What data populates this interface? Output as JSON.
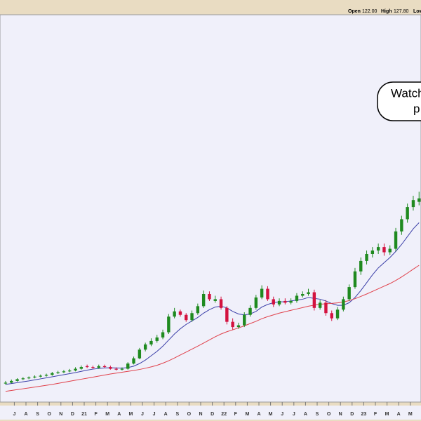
{
  "chart_data": {
    "type": "candlestick",
    "header": [
      "Open",
      "122.00",
      "High",
      "127.80",
      "Low"
    ],
    "annotation": [
      "Watch",
      "p"
    ],
    "xlim": [
      -0.5,
      71.5
    ],
    "ylim": [
      0,
      230
    ],
    "xticks": [
      {
        "value": 1.5,
        "label": "J"
      },
      {
        "value": 3.5,
        "label": "A"
      },
      {
        "value": 5.5,
        "label": "S"
      },
      {
        "value": 7.5,
        "label": "O"
      },
      {
        "value": 9.5,
        "label": "N"
      },
      {
        "value": 11.5,
        "label": "D"
      },
      {
        "value": 13.5,
        "label": "21"
      },
      {
        "value": 15.5,
        "label": "F"
      },
      {
        "value": 17.5,
        "label": "M"
      },
      {
        "value": 19.5,
        "label": "A"
      },
      {
        "value": 21.5,
        "label": "M"
      },
      {
        "value": 23.5,
        "label": "J"
      },
      {
        "value": 25.5,
        "label": "J"
      },
      {
        "value": 27.5,
        "label": "A"
      },
      {
        "value": 29.5,
        "label": "S"
      },
      {
        "value": 31.5,
        "label": "O"
      },
      {
        "value": 33.5,
        "label": "N"
      },
      {
        "value": 35.5,
        "label": "D"
      },
      {
        "value": 37.5,
        "label": "22"
      },
      {
        "value": 39.5,
        "label": "F"
      },
      {
        "value": 41.5,
        "label": "M"
      },
      {
        "value": 43.5,
        "label": "A"
      },
      {
        "value": 45.5,
        "label": "M"
      },
      {
        "value": 47.5,
        "label": "J"
      },
      {
        "value": 49.5,
        "label": "J"
      },
      {
        "value": 51.5,
        "label": "A"
      },
      {
        "value": 53.5,
        "label": "S"
      },
      {
        "value": 55.5,
        "label": "O"
      },
      {
        "value": 57.5,
        "label": "N"
      },
      {
        "value": 59.5,
        "label": "D"
      },
      {
        "value": 61.5,
        "label": "23"
      },
      {
        "value": 63.5,
        "label": "F"
      },
      {
        "value": 65.5,
        "label": "M"
      },
      {
        "value": 67.5,
        "label": "A"
      },
      {
        "value": 69.5,
        "label": "M"
      }
    ],
    "up_color": "#1f8a1f",
    "down_color": "#d3123f",
    "open": [
      17.5,
      18,
      19,
      20,
      20.5,
      21,
      21.5,
      22,
      22.5,
      23.5,
      24,
      24.5,
      25,
      26,
      27.5,
      27,
      26.5,
      27.5,
      27,
      26,
      25.5,
      26,
      29,
      32,
      37,
      40,
      42,
      44,
      47,
      56,
      59,
      57,
      54,
      58,
      62,
      69,
      65,
      66,
      61,
      53,
      50,
      51,
      57,
      61,
      67,
      72,
      66,
      63,
      65,
      64,
      65,
      68,
      69,
      70,
      61,
      64,
      58,
      55,
      60,
      66,
      73,
      82,
      88,
      92,
      94,
      96,
      93,
      95,
      105,
      112,
      119,
      122
    ],
    "high": [
      19,
      19.8,
      20.6,
      21.2,
      21.6,
      22.2,
      22.7,
      23.2,
      24.2,
      24.8,
      25.3,
      25.9,
      26.9,
      27.9,
      28.4,
      27.8,
      28.4,
      28.4,
      27.8,
      26.8,
      26.8,
      29.8,
      33,
      38,
      41,
      43.5,
      45.5,
      48.5,
      57.5,
      61,
      60,
      58,
      59.5,
      63.5,
      71,
      70.5,
      68,
      67.5,
      62,
      55,
      52.5,
      58.5,
      62.5,
      68.5,
      74,
      73.5,
      67.5,
      66.5,
      66.5,
      66.5,
      69.5,
      70.5,
      72,
      71.5,
      65.5,
      65.5,
      59.5,
      61.5,
      67.5,
      74.5,
      84,
      90,
      94,
      96,
      98,
      98,
      97,
      107,
      114,
      121,
      125.5,
      127.8
    ],
    "low": [
      17,
      17.6,
      18.6,
      19.5,
      20,
      20.5,
      21,
      21.5,
      22,
      23,
      23.5,
      24,
      24.5,
      25.5,
      26.4,
      26,
      26,
      26.5,
      25.5,
      25,
      25,
      25.5,
      28.5,
      31.5,
      36,
      39,
      41,
      43,
      46,
      55,
      56,
      53,
      53,
      57,
      61,
      65,
      64,
      60,
      51.5,
      48.5,
      49,
      50,
      56,
      60,
      66,
      65,
      61.5,
      62,
      63,
      63,
      64,
      67,
      68,
      59.5,
      60,
      56.5,
      53.5,
      54,
      59,
      65,
      72,
      80,
      86,
      90,
      92,
      91,
      91.5,
      93.5,
      103,
      110,
      117,
      120
    ],
    "close": [
      18,
      19,
      20,
      20.5,
      21,
      21.5,
      22,
      22.5,
      23.5,
      24,
      24.5,
      25,
      26,
      27,
      27,
      26.5,
      27.5,
      27,
      26,
      25.5,
      26,
      29,
      32,
      37,
      40,
      42,
      44,
      47,
      56,
      59,
      57,
      54,
      58,
      62,
      69,
      66,
      66,
      61,
      53,
      50,
      51,
      57,
      61,
      67,
      72,
      66,
      63,
      65,
      64,
      65,
      68,
      69,
      70,
      61,
      64,
      58,
      55,
      60,
      66,
      73,
      82,
      88,
      92,
      94,
      96,
      93,
      95,
      105,
      112,
      119,
      123,
      124
    ],
    "series": [
      {
        "color": "#3b3fa8",
        "values": [
          17,
          17.5,
          18,
          18.5,
          19,
          19.6,
          20.2,
          20.8,
          21.4,
          22,
          22.6,
          23.2,
          23.8,
          24.5,
          25.2,
          25.8,
          26.2,
          26.5,
          26.6,
          26.5,
          26.4,
          26.7,
          27.5,
          29,
          31,
          33.5,
          36,
          39,
          42.5,
          46,
          49,
          51.5,
          53.5,
          55.5,
          58,
          60,
          61.5,
          62,
          61,
          59,
          57.5,
          57,
          57.5,
          59,
          61.5,
          63,
          64,
          64.5,
          64.5,
          65,
          65.5,
          66,
          67,
          66.5,
          66,
          65,
          63.5,
          62.5,
          62.5,
          64,
          67,
          71,
          75.5,
          80,
          84,
          87,
          90,
          93.5,
          97.5,
          102,
          106.5,
          110
        ]
      },
      {
        "color": "#e0404a",
        "values": [
          13,
          13.5,
          14,
          14.5,
          15,
          15.5,
          16,
          16.5,
          17,
          17.6,
          18.2,
          18.8,
          19.4,
          20,
          20.6,
          21.2,
          21.8,
          22.4,
          23,
          23.5,
          24,
          24.5,
          25,
          25.6,
          26.3,
          27.1,
          28,
          29.2,
          30.6,
          32.2,
          33.9,
          35.6,
          37.3,
          39,
          40.8,
          42.6,
          44.4,
          46,
          47.3,
          48.4,
          49.5,
          50.7,
          52,
          53.3,
          54.8,
          56,
          57,
          58,
          58.8,
          59.6,
          60.4,
          61.2,
          62,
          62.6,
          63.1,
          63.4,
          63.6,
          63.9,
          64.4,
          65.2,
          66.3,
          67.6,
          69,
          70.5,
          72,
          73.5,
          75,
          76.8,
          78.8,
          81,
          83.3,
          85.5
        ]
      }
    ]
  }
}
